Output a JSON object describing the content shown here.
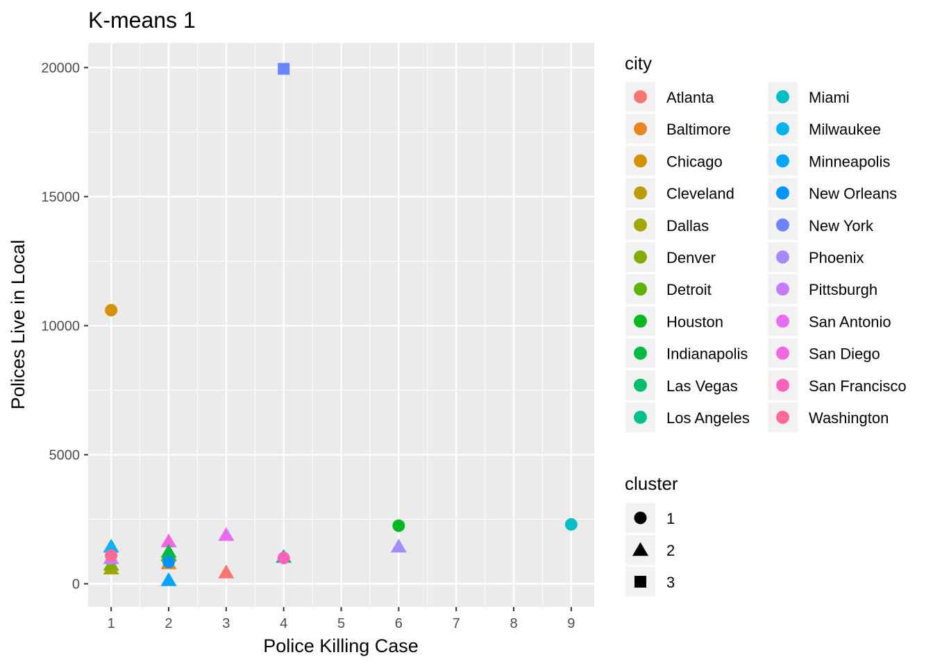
{
  "chart_data": {
    "type": "scatter",
    "title": "K-means 1",
    "xlabel": "Police Killing Case",
    "ylabel": "Polices Live in Local",
    "xlim": [
      0.6,
      9.4
    ],
    "ylim": [
      -900,
      20950
    ],
    "x_ticks": [
      1,
      2,
      3,
      4,
      5,
      6,
      7,
      8,
      9
    ],
    "y_ticks": [
      0,
      5000,
      10000,
      15000,
      20000
    ],
    "grid": true,
    "legend_position": "right",
    "legends": [
      {
        "title": "city",
        "columns": 2,
        "entries": [
          {
            "label": "Atlanta",
            "color": "#F8766D"
          },
          {
            "label": "Baltimore",
            "color": "#E7851E"
          },
          {
            "label": "Chicago",
            "color": "#D39200"
          },
          {
            "label": "Cleveland",
            "color": "#BB9D00"
          },
          {
            "label": "Dallas",
            "color": "#A3A500"
          },
          {
            "label": "Denver",
            "color": "#82AD00"
          },
          {
            "label": "Detroit",
            "color": "#5BB300"
          },
          {
            "label": "Houston",
            "color": "#00B81F"
          },
          {
            "label": "Indianapolis",
            "color": "#00BA42"
          },
          {
            "label": "Las Vegas",
            "color": "#00BE6C"
          },
          {
            "label": "Los Angeles",
            "color": "#00C08B"
          },
          {
            "label": "Miami",
            "color": "#00BFC4"
          },
          {
            "label": "Milwaukee",
            "color": "#00B4EF"
          },
          {
            "label": "Minneapolis",
            "color": "#00A5FF"
          },
          {
            "label": "New Orleans",
            "color": "#0094FF"
          },
          {
            "label": "New York",
            "color": "#6A84FF"
          },
          {
            "label": "Phoenix",
            "color": "#A58AFF"
          },
          {
            "label": "Pittsburgh",
            "color": "#C77CFF"
          },
          {
            "label": "San Antonio",
            "color": "#E76BF3"
          },
          {
            "label": "San Diego",
            "color": "#F564E3"
          },
          {
            "label": "San Francisco",
            "color": "#FF62BC"
          },
          {
            "label": "Washington",
            "color": "#FF6A98"
          }
        ]
      },
      {
        "title": "cluster",
        "entries": [
          {
            "label": "1",
            "shape": "circle"
          },
          {
            "label": "2",
            "shape": "triangle"
          },
          {
            "label": "3",
            "shape": "square"
          }
        ]
      }
    ],
    "points": [
      {
        "city": "New York",
        "x": 4,
        "y": 19950,
        "cluster": "3",
        "color": "#6A84FF"
      },
      {
        "city": "Chicago",
        "x": 1,
        "y": 10600,
        "cluster": "1",
        "color": "#D39200"
      },
      {
        "city": "Houston",
        "x": 6,
        "y": 2250,
        "cluster": "1",
        "color": "#00B81F"
      },
      {
        "city": "Miami",
        "x": 9,
        "y": 2300,
        "cluster": "1",
        "color": "#00BFC4"
      },
      {
        "city": "Milwaukee",
        "x": 1,
        "y": 1450,
        "cluster": "2",
        "color": "#00B4EF"
      },
      {
        "city": "Dallas",
        "x": 1,
        "y": 600,
        "cluster": "2",
        "color": "#A3A500"
      },
      {
        "city": "Denver",
        "x": 1,
        "y": 750,
        "cluster": "2",
        "color": "#82AD00"
      },
      {
        "city": "Pittsburgh",
        "x": 1,
        "y": 1000,
        "cluster": "2",
        "color": "#C77CFF"
      },
      {
        "city": "Washington",
        "x": 1,
        "y": 1100,
        "cluster": "1",
        "color": "#FF6A98"
      },
      {
        "city": "San Diego",
        "x": 2,
        "y": 1650,
        "cluster": "2",
        "color": "#F564E3"
      },
      {
        "city": "Cleveland",
        "x": 2,
        "y": 1150,
        "cluster": "2",
        "color": "#BB9D00"
      },
      {
        "city": "Detroit",
        "x": 2,
        "y": 1100,
        "cluster": "2",
        "color": "#5BB300"
      },
      {
        "city": "Indianapolis",
        "x": 2,
        "y": 1250,
        "cluster": "2",
        "color": "#00BA42"
      },
      {
        "city": "Baltimore",
        "x": 2,
        "y": 800,
        "cluster": "2",
        "color": "#E7851E"
      },
      {
        "city": "New Orleans",
        "x": 2,
        "y": 850,
        "cluster": "1",
        "color": "#0094FF"
      },
      {
        "city": "Minneapolis",
        "x": 2,
        "y": 150,
        "cluster": "2",
        "color": "#00A5FF"
      },
      {
        "city": "San Antonio",
        "x": 3,
        "y": 1900,
        "cluster": "2",
        "color": "#E76BF3"
      },
      {
        "city": "Atlanta",
        "x": 3,
        "y": 450,
        "cluster": "2",
        "color": "#F8766D"
      },
      {
        "city": "Las Vegas",
        "x": 4,
        "y": 1050,
        "cluster": "2",
        "color": "#00BE6C"
      },
      {
        "city": "San Francisco",
        "x": 4,
        "y": 1000,
        "cluster": "1",
        "color": "#FF62BC"
      },
      {
        "city": "Phoenix",
        "x": 6,
        "y": 1450,
        "cluster": "2",
        "color": "#A58AFF"
      }
    ]
  }
}
